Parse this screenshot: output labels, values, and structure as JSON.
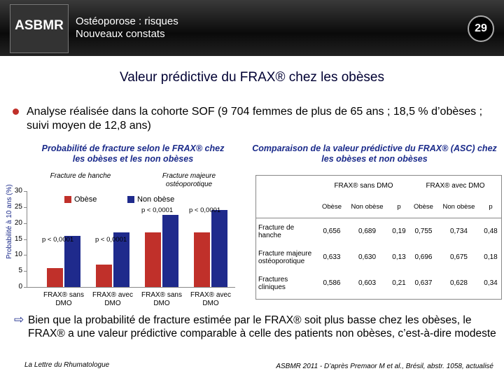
{
  "header": {
    "logo": "ASBMR",
    "line1": "Ostéoporose : risques",
    "line2": "Nouveaux constats",
    "page": "29"
  },
  "title": "Valeur prédictive du FRAX® chez les obèses",
  "bullet": "Analyse réalisée dans la cohorte SOF (9 704 femmes de plus de 65 ans ; 18,5 % d’obèses ; suivi moyen de 12,8 ans)",
  "chart_data": {
    "type": "bar",
    "title": "Probabilité de fracture selon le FRAX® chez les obèses et les non obèses",
    "y_label": "Probabilité à 10 ans (%)",
    "groups": [
      "Fracture de hanche",
      "Fracture majeure ostéoporotique"
    ],
    "categories": [
      "FRAX® sans DMO",
      "FRAX® avec DMO",
      "FRAX® sans DMO",
      "FRAX® avec DMO"
    ],
    "series": [
      {
        "name": "Obèse",
        "color": "#c0302a",
        "values": [
          6,
          7,
          17,
          17
        ]
      },
      {
        "name": "Non obèse",
        "color": "#1f2a8c",
        "values": [
          16,
          17,
          22.5,
          24
        ]
      }
    ],
    "annotations": [
      "p < 0,0001",
      "p < 0,0001",
      "p < 0,0001",
      "p < 0,0001"
    ],
    "ylim": [
      0,
      30
    ],
    "yticks": [
      0,
      5,
      10,
      15,
      20,
      25,
      30
    ]
  },
  "table": {
    "title": "Comparaison de la valeur prédictive du FRAX® (ASC) chez les obèses et non obèses",
    "groups": [
      "FRAX® sans DMO",
      "FRAX® avec DMO"
    ],
    "columns": [
      "Obèse",
      "Non obèse",
      "p",
      "Obèse",
      "Non obèse",
      "p"
    ],
    "rows": [
      [
        "Fracture de hanche",
        "0,656",
        "0,689",
        "0,19",
        "0,755",
        "0,734",
        "0,48"
      ],
      [
        "Fracture majeure ostéoporotique",
        "0,633",
        "0,630",
        "0,13",
        "0,696",
        "0,675",
        "0,18"
      ],
      [
        "Fractures cliniques",
        "0,586",
        "0,603",
        "0,21",
        "0,637",
        "0,628",
        "0,34"
      ]
    ]
  },
  "conclusion": "Bien que la probabilité de fracture estimée par le FRAX® soit plus basse chez les obèses, le FRAX® a une valeur prédictive comparable à celle des patients non obèses, c’est-à-dire modeste",
  "footer": {
    "left": "La Lettre du Rhumatologue",
    "right": "ASBMR 2011 - D’après Premaor M et al., Brésil, abstr. 1058, actualisé"
  }
}
